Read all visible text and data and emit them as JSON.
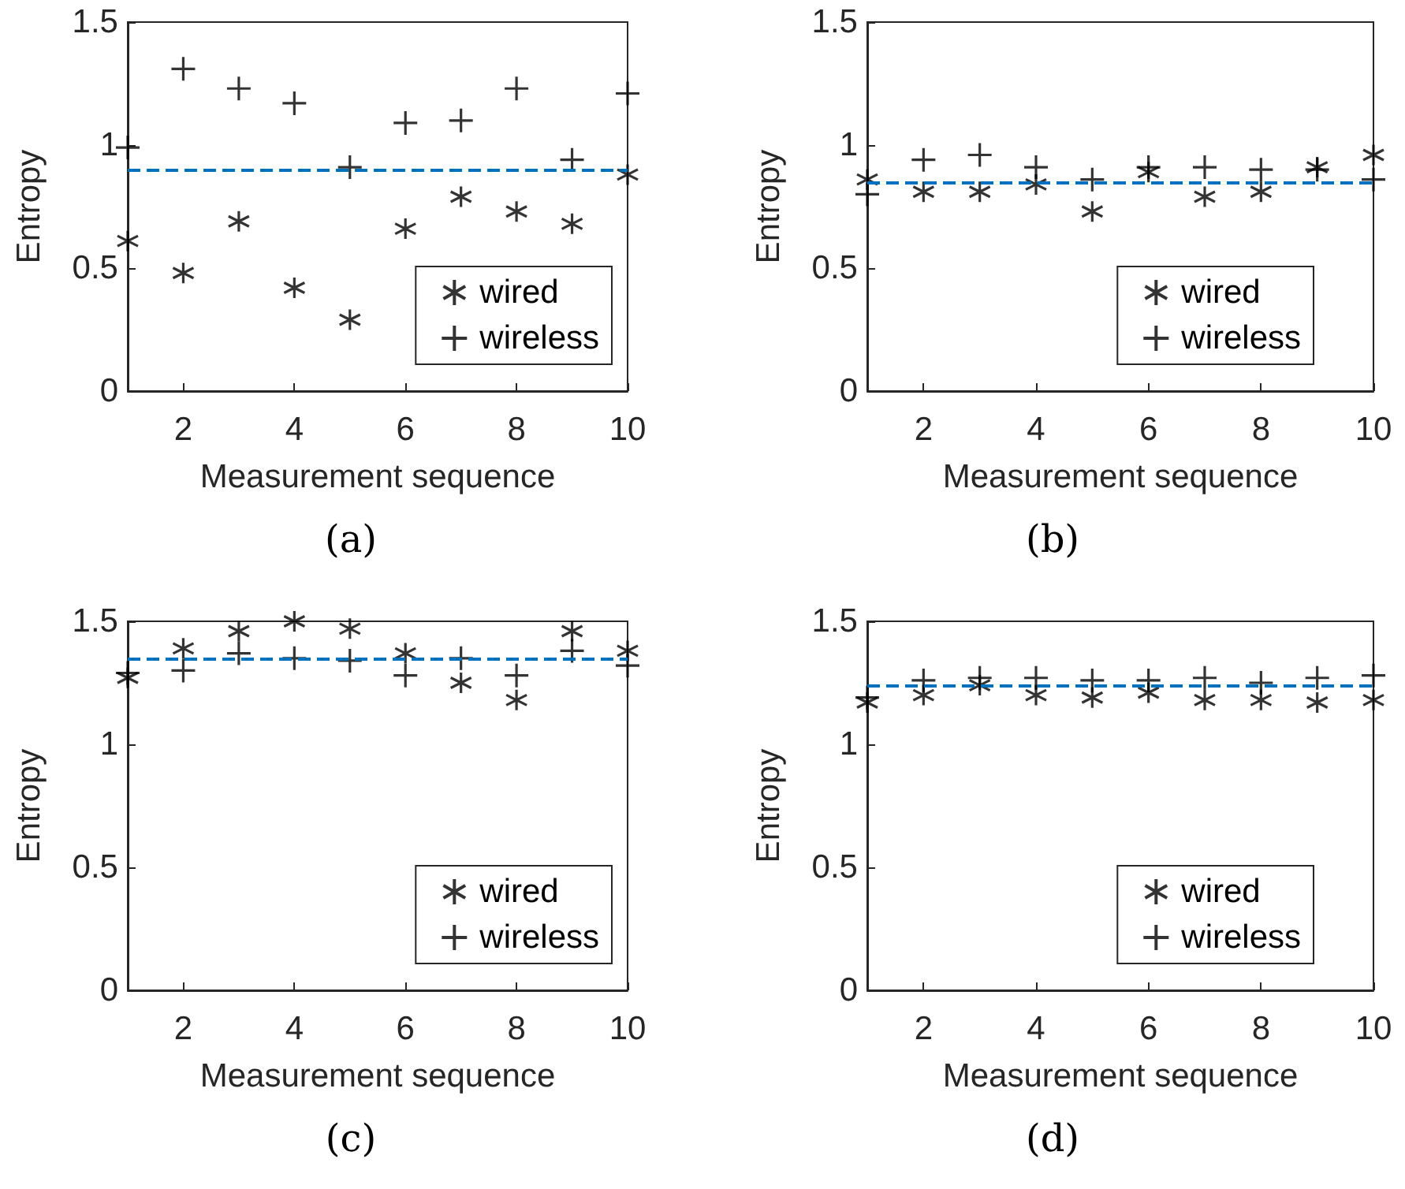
{
  "chart_data": [
    {
      "type": "scatter",
      "title": "(a)",
      "xlabel": "Measurement sequence",
      "ylabel": "Entropy",
      "x": [
        1,
        2,
        3,
        4,
        5,
        6,
        7,
        8,
        9,
        10
      ],
      "xlim": [
        1,
        10
      ],
      "xticks": [
        2,
        4,
        6,
        8,
        10
      ],
      "ylim": [
        0,
        1.5
      ],
      "yticks": [
        0,
        0.5,
        1,
        1.5
      ],
      "grid": false,
      "legend": "bottom right",
      "series": [
        {
          "name": "wired",
          "color": "#000000",
          "marker": "cross",
          "values": [
            0.61,
            0.48,
            0.69,
            0.42,
            0.29,
            0.66,
            0.79,
            0.73,
            0.68,
            0.88
          ]
        },
        {
          "name": "wireless",
          "color": "#000000",
          "marker": "cross",
          "values": [
            0.99,
            1.31,
            1.23,
            1.17,
            0.91,
            1.09,
            1.1,
            1.23,
            0.94,
            1.21
          ]
        }
      ],
      "ref_lines": [
        {
          "axis": "y",
          "value": 0.9,
          "color": "#0072bd",
          "line_style": "dashed"
        }
      ]
    },
    {
      "type": "scatter",
      "title": "(b)",
      "xlabel": "Measurement sequence",
      "ylabel": "Entropy",
      "x": [
        1,
        2,
        3,
        4,
        5,
        6,
        7,
        8,
        9,
        10
      ],
      "xlim": [
        1,
        10
      ],
      "xticks": [
        2,
        4,
        6,
        8,
        10
      ],
      "ylim": [
        0,
        1.5
      ],
      "yticks": [
        0,
        0.5,
        1,
        1.5
      ],
      "grid": false,
      "legend": "bottom right",
      "series": [
        {
          "name": "wired",
          "color": "#000000",
          "marker": "cross",
          "values": [
            0.86,
            0.81,
            0.81,
            0.84,
            0.73,
            0.89,
            0.79,
            0.81,
            0.91,
            0.96
          ]
        },
        {
          "name": "wireless",
          "color": "#000000",
          "marker": "cross",
          "values": [
            0.8,
            0.94,
            0.96,
            0.91,
            0.86,
            0.91,
            0.91,
            0.9,
            0.9,
            0.86
          ]
        }
      ],
      "ref_lines": [
        {
          "axis": "y",
          "value": 0.85,
          "color": "#0072bd",
          "line_style": "dashed"
        }
      ]
    },
    {
      "type": "scatter",
      "title": "(c)",
      "xlabel": "Measurement sequence",
      "ylabel": "Entropy",
      "x": [
        1,
        2,
        3,
        4,
        5,
        6,
        7,
        8,
        9,
        10
      ],
      "xlim": [
        1,
        10
      ],
      "xticks": [
        2,
        4,
        6,
        8,
        10
      ],
      "ylim": [
        0,
        1.5
      ],
      "yticks": [
        0,
        0.5,
        1,
        1.5
      ],
      "grid": false,
      "legend": "bottom right",
      "series": [
        {
          "name": "wired",
          "color": "#000000",
          "marker": "cross",
          "values": [
            1.27,
            1.39,
            1.46,
            1.5,
            1.47,
            1.37,
            1.25,
            1.18,
            1.46,
            1.38
          ]
        },
        {
          "name": "wireless",
          "color": "#000000",
          "marker": "cross",
          "values": [
            1.29,
            1.3,
            1.37,
            1.35,
            1.34,
            1.28,
            1.35,
            1.28,
            1.38,
            1.32
          ]
        }
      ],
      "ref_lines": [
        {
          "axis": "y",
          "value": 1.35,
          "color": "#0072bd",
          "line_style": "dashed"
        }
      ]
    },
    {
      "type": "scatter",
      "title": "(d)",
      "xlabel": "Measurement sequence",
      "ylabel": "Entropy",
      "x": [
        1,
        2,
        3,
        4,
        5,
        6,
        7,
        8,
        9,
        10
      ],
      "xlim": [
        1,
        10
      ],
      "xticks": [
        2,
        4,
        6,
        8,
        10
      ],
      "ylim": [
        0,
        1.5
      ],
      "yticks": [
        0,
        0.5,
        1,
        1.5
      ],
      "grid": false,
      "legend": "bottom right",
      "series": [
        {
          "name": "wired",
          "color": "#000000",
          "marker": "cross",
          "values": [
            1.17,
            1.2,
            1.24,
            1.2,
            1.19,
            1.21,
            1.18,
            1.18,
            1.17,
            1.18
          ]
        },
        {
          "name": "wireless",
          "color": "#000000",
          "marker": "cross",
          "values": [
            1.19,
            1.26,
            1.27,
            1.27,
            1.26,
            1.26,
            1.27,
            1.25,
            1.27,
            1.28
          ]
        }
      ],
      "ref_lines": [
        {
          "axis": "y",
          "value": 1.24,
          "color": "#0072bd",
          "line_style": "dashed"
        }
      ]
    }
  ]
}
